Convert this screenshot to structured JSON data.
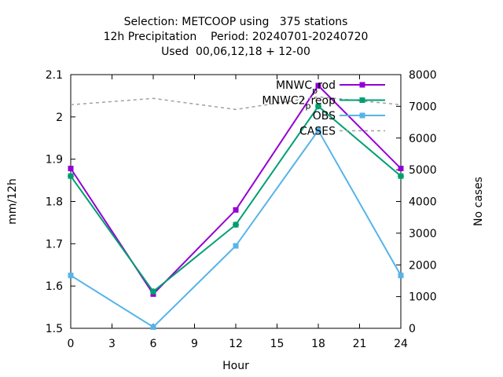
{
  "chart_data": {
    "type": "line",
    "title_lines": [
      "Selection: METCOOP using   375 stations",
      "12h Precipitation    Period: 20240701-20240720",
      "Used  00,06,12,18 + 12-00"
    ],
    "xlabel": "Hour",
    "ylabel": "mm/12h",
    "y2label": "No cases",
    "xlim": [
      0,
      24
    ],
    "ylim": [
      1.5,
      2.1
    ],
    "y2lim": [
      0,
      8000
    ],
    "x_ticks": [
      "0",
      "3",
      "6",
      "9",
      "12",
      "15",
      "18",
      "21",
      "24"
    ],
    "y_ticks": [
      "1.5",
      "1.6",
      "1.7",
      "1.8",
      "1.9",
      "2",
      "2.1"
    ],
    "y2_ticks": [
      "0",
      "1000",
      "2000",
      "3000",
      "4000",
      "5000",
      "6000",
      "7000",
      "8000"
    ],
    "grid": false,
    "legend_position": "top-right",
    "x": [
      0,
      6,
      12,
      18,
      24
    ],
    "series": [
      {
        "name": "MNWC_prod",
        "legend_main": "MNWC",
        "legend_sub": "p",
        "legend_rest": "rod",
        "axis": "y1",
        "color": "#9400d3",
        "dash": false,
        "values": [
          1.878,
          1.581,
          1.78,
          2.074,
          1.878
        ]
      },
      {
        "name": "MNWC2_preop",
        "legend_main": "MNWC2",
        "legend_sub": "p",
        "legend_rest": "reop",
        "axis": "y1",
        "color": "#009e73",
        "dash": false,
        "values": [
          1.86,
          1.587,
          1.745,
          2.025,
          1.86
        ]
      },
      {
        "name": "OBS",
        "legend_main": "OBS",
        "legend_sub": "",
        "legend_rest": "",
        "axis": "y1",
        "color": "#56b4e9",
        "dash": false,
        "values": [
          1.625,
          1.503,
          1.695,
          1.968,
          1.625
        ]
      },
      {
        "name": "CASES",
        "legend_main": "CASES",
        "legend_sub": "",
        "legend_rest": "",
        "axis": "y2",
        "color": "#a0a0a0",
        "dash": true,
        "values": [
          7050,
          7250,
          6900,
          7300,
          7050
        ]
      }
    ]
  }
}
